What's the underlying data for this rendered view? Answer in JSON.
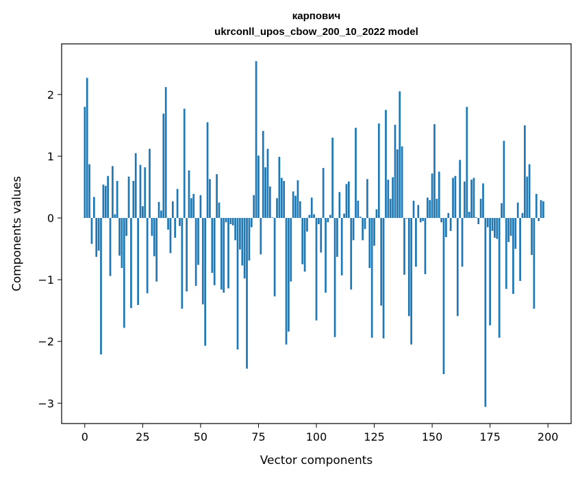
{
  "chart_data": {
    "type": "bar",
    "title_line1": "карпович",
    "title_line2": "ukrconll_upos_cbow_200_10_2022 model",
    "xlabel": "Vector components",
    "ylabel": "Components values",
    "xlim": [
      -10,
      210
    ],
    "ylim": [
      -3.33,
      2.82
    ],
    "xticks": [
      0,
      25,
      50,
      75,
      100,
      125,
      150,
      175,
      200
    ],
    "yticks": [
      -3,
      -2,
      -1,
      0,
      1,
      2
    ],
    "ytick_labels": [
      "−3",
      "−2",
      "−1",
      "0",
      "1",
      "2"
    ],
    "bar_color": "#1f77b4",
    "values": [
      1.8,
      2.27,
      0.87,
      -0.42,
      0.34,
      -0.63,
      -0.53,
      -2.21,
      0.54,
      0.52,
      0.68,
      -0.94,
      0.84,
      0.06,
      0.6,
      -0.61,
      -0.81,
      -1.78,
      -0.29,
      0.67,
      -1.46,
      0.6,
      1.05,
      -1.41,
      0.86,
      0.19,
      0.82,
      -1.22,
      1.12,
      -0.29,
      -0.62,
      -1.03,
      0.26,
      0.12,
      1.69,
      2.12,
      -0.19,
      -0.57,
      0.27,
      -0.32,
      0.47,
      -0.13,
      -1.47,
      1.77,
      -1.19,
      0.77,
      0.32,
      0.39,
      -1.1,
      -0.76,
      0.37,
      -1.4,
      -2.07,
      1.55,
      0.63,
      -0.89,
      -1.09,
      0.71,
      0.25,
      -1.16,
      -1.21,
      -0.07,
      -1.14,
      -0.1,
      -0.12,
      -0.36,
      -2.13,
      -0.51,
      -0.77,
      -0.98,
      -2.44,
      -0.69,
      -0.15,
      0.37,
      2.54,
      1.01,
      -0.59,
      1.41,
      0.82,
      1.12,
      0.51,
      0.01,
      -1.27,
      0.32,
      0.99,
      0.65,
      0.6,
      -2.05,
      -1.84,
      -1.03,
      0.43,
      0.36,
      0.61,
      0.27,
      -0.75,
      -0.87,
      -0.22,
      0.05,
      0.33,
      0.06,
      -1.66,
      -0.1,
      -0.56,
      0.81,
      -1.21,
      -0.07,
      0.05,
      1.3,
      -1.93,
      -0.63,
      0.42,
      -0.93,
      0.07,
      0.55,
      0.59,
      -1.16,
      -0.36,
      1.46,
      0.28,
      0.02,
      -0.36,
      -0.18,
      0.63,
      -0.81,
      -1.94,
      -0.45,
      0.14,
      1.53,
      -1.42,
      -1.95,
      1.75,
      0.62,
      0.31,
      0.66,
      1.51,
      1.11,
      2.05,
      1.16,
      -0.92,
      -0.01,
      -1.59,
      -2.05,
      0.28,
      -0.79,
      0.21,
      -0.07,
      -0.05,
      -0.91,
      0.33,
      0.29,
      0.72,
      1.52,
      0.31,
      0.75,
      -0.07,
      -2.53,
      -0.31,
      0.08,
      -0.21,
      0.65,
      0.68,
      -1.59,
      0.94,
      -0.79,
      0.59,
      1.8,
      0.1,
      0.62,
      0.65,
      0.01,
      -0.1,
      0.31,
      0.56,
      -3.06,
      -0.15,
      -1.74,
      -0.21,
      -0.32,
      -0.34,
      -1.94,
      0.24,
      1.25,
      -1.15,
      -0.39,
      -0.29,
      -1.23,
      -0.5,
      0.25,
      -1.02,
      0.08,
      1.5,
      0.67,
      0.87,
      -0.6,
      -1.47,
      0.39,
      -0.05,
      0.29,
      0.27
    ]
  }
}
